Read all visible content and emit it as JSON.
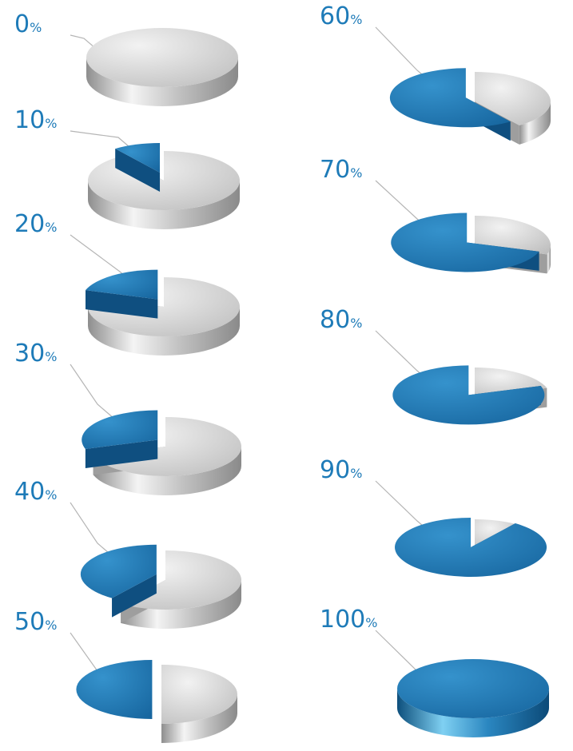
{
  "chart_data": {
    "type": "pie",
    "variant": "3d-exploded-pie-infographic",
    "title": "",
    "colors": {
      "highlight": "#1f78b4",
      "base": "#c4c4c4",
      "label": "#1e7bb8",
      "leader": "#b5b5b5"
    },
    "percent_symbol": "%",
    "charts": [
      {
        "label": "0",
        "value": 0
      },
      {
        "label": "10",
        "value": 10
      },
      {
        "label": "20",
        "value": 20
      },
      {
        "label": "30",
        "value": 30
      },
      {
        "label": "40",
        "value": 40
      },
      {
        "label": "50",
        "value": 50
      },
      {
        "label": "60",
        "value": 60
      },
      {
        "label": "70",
        "value": 70
      },
      {
        "label": "80",
        "value": 80
      },
      {
        "label": "90",
        "value": 90
      },
      {
        "label": "100",
        "value": 100
      }
    ]
  }
}
